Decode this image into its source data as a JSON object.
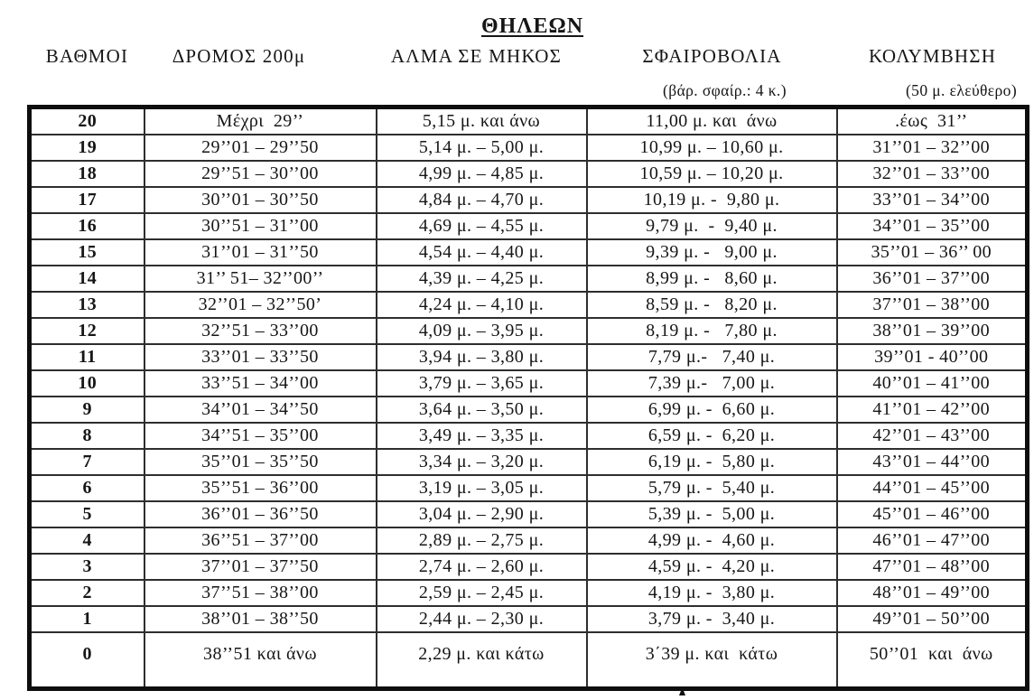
{
  "title": "ΘΗΛΕΩΝ",
  "columns": [
    {
      "label": "ΒΑΘΜΟΙ",
      "sub": ""
    },
    {
      "label": "ΔΡΟΜΟΣ 200μ",
      "sub": ""
    },
    {
      "label": "ΑΛΜΑ ΣΕ ΜΗΚΟΣ",
      "sub": ""
    },
    {
      "label": "ΣΦΑΙΡΟΒΟΛΙΑ",
      "sub": "(βάρ. σφαίρ.: 4 κ.)"
    },
    {
      "label": "ΚΟΛΥΜΒΗΣΗ",
      "sub": "(50 μ. ελεύθερο)"
    }
  ],
  "row_fields": [
    "points",
    "run-200m",
    "long-jump",
    "shot-put",
    "swim"
  ],
  "rows": [
    [
      "20",
      "Μέχρι  29’’",
      "5,15 μ. και άνω",
      "11,00 μ. και  άνω",
      ".έως  31’’"
    ],
    [
      "19",
      "29’’01 – 29’’50",
      "5,14 μ. – 5,00 μ.",
      "10,99 μ. – 10,60 μ.",
      "31’’01 – 32’’00"
    ],
    [
      "18",
      "29’’51 – 30’’00",
      "4,99 μ. – 4,85 μ.",
      "10,59 μ. – 10,20 μ.",
      "32’’01 – 33’’00"
    ],
    [
      "17",
      "30’’01 – 30’’50",
      "4,84 μ. – 4,70 μ.",
      "10,19 μ. -  9,80 μ.",
      "33’’01 – 34’’00"
    ],
    [
      "16",
      "30’’51 – 31’’00",
      "4,69 μ. – 4,55 μ.",
      "9,79 μ.  -  9,40 μ.",
      "34’’01 – 35’’00"
    ],
    [
      "15",
      "31’’01 – 31’’50",
      "4,54 μ. – 4,40 μ.",
      "9,39 μ. -   9,00 μ.",
      "35’’01 – 36’’ 00"
    ],
    [
      "14",
      "31’’ 51– 32’’00’’",
      "4,39 μ. – 4,25 μ.",
      "8,99 μ. -   8,60 μ.",
      "36’’01 – 37’’00"
    ],
    [
      "13",
      "32’’01 – 32’’50’",
      "4,24 μ. – 4,10 μ.",
      "8,59 μ. -   8,20 μ.",
      "37’’01 – 38’’00"
    ],
    [
      "12",
      "32’’51 – 33’’00",
      "4,09 μ. – 3,95 μ.",
      "8,19 μ. -   7,80 μ.",
      "38’’01 – 39’’00"
    ],
    [
      "11",
      "33’’01 – 33’’50",
      "3,94 μ. – 3,80 μ.",
      "7,79 μ.-   7,40 μ.",
      "39’’01 - 40’’00"
    ],
    [
      "10",
      "33’’51 – 34’’00",
      "3,79 μ. – 3,65 μ.",
      "7,39 μ.-   7,00 μ.",
      "40’’01 – 41’’00"
    ],
    [
      "9",
      "34’’01 – 34’’50",
      "3,64 μ. – 3,50 μ.",
      "6,99 μ. -  6,60 μ.",
      "41’’01 – 42’’00"
    ],
    [
      "8",
      "34’’51 – 35’’00",
      "3,49 μ. – 3,35 μ.",
      "6,59 μ. -  6,20 μ.",
      "42’’01 – 43’’00"
    ],
    [
      "7",
      "35’’01 – 35’’50",
      "3,34 μ. – 3,20 μ.",
      "6,19 μ. -  5,80 μ.",
      "43’’01 – 44’’00"
    ],
    [
      "6",
      "35’’51 – 36’’00",
      "3,19 μ. – 3,05 μ.",
      "5,79 μ. -  5,40 μ.",
      "44’’01 – 45’’00"
    ],
    [
      "5",
      "36’’01 – 36’’50",
      "3,04 μ. – 2,90 μ.",
      "5,39 μ. -  5,00 μ.",
      "45’’01 – 46’’00"
    ],
    [
      "4",
      "36’’51 – 37’’00",
      "2,89 μ. – 2,75 μ.",
      "4,99 μ. -  4,60 μ.",
      "46’’01 – 47’’00"
    ],
    [
      "3",
      "37’’01 – 37’’50",
      "2,74 μ. – 2,60 μ.",
      "4,59 μ. -  4,20 μ.",
      "47’’01 – 48’’00"
    ],
    [
      "2",
      "37’’51 – 38’’00",
      "2,59 μ. – 2,45 μ.",
      "4,19 μ. -  3,80 μ.",
      "48’’01 – 49’’00"
    ],
    [
      "1",
      "38’’01 – 38’’50",
      "2,44 μ. – 2,30 μ.",
      "3,79 μ. -  3,40 μ.",
      "49’’01 – 50’’00"
    ],
    [
      "0",
      "38’’51 και άνω",
      "2,29 μ. και κάτω",
      "3΄39 μ. και  κάτω",
      "50’’01  και  άνω"
    ]
  ]
}
